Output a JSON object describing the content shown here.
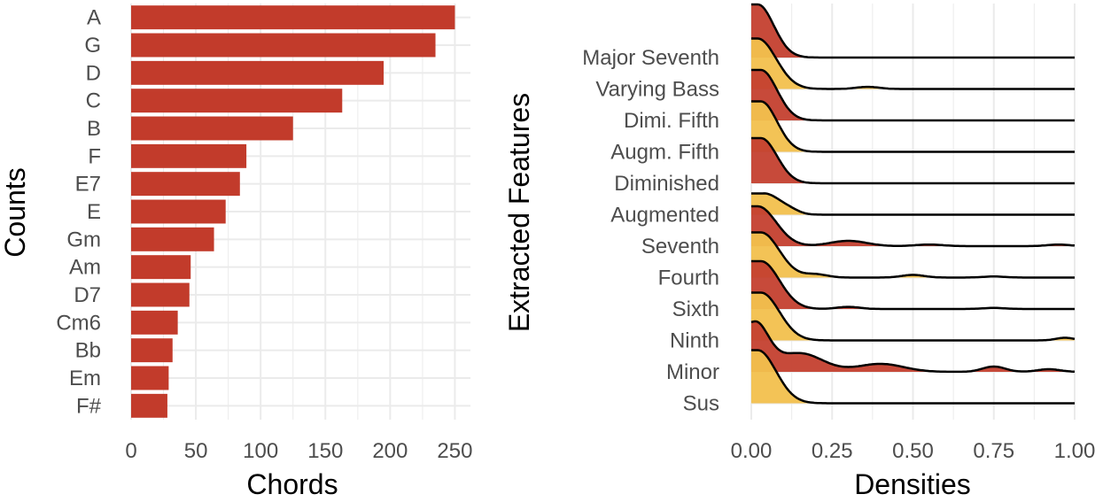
{
  "chart_data": [
    {
      "type": "bar",
      "orientation": "horizontal",
      "xlabel": "Chords",
      "ylabel": "Counts",
      "categories": [
        "A",
        "G",
        "D",
        "C",
        "B",
        "F",
        "E7",
        "E",
        "Gm",
        "Am",
        "D7",
        "Cm6",
        "Bb",
        "Em",
        "F#"
      ],
      "values": [
        250,
        235,
        195,
        163,
        125,
        89,
        84,
        73,
        64,
        46,
        45,
        36,
        32,
        29,
        28
      ],
      "xlim": [
        0,
        262
      ],
      "xticks": [
        0,
        50,
        100,
        150,
        200,
        250
      ],
      "grid": true,
      "colors": {
        "bar": "#c23b2b",
        "grid": "#ebebeb",
        "text": "#4d4d4d"
      }
    },
    {
      "type": "area",
      "subtype": "ridgeline-density",
      "xlabel": "Densities",
      "ylabel": "Extracted Features",
      "x_range": [
        0,
        1
      ],
      "xticks": [
        "0.00",
        "0.25",
        "0.50",
        "0.75",
        "1.00"
      ],
      "grid": true,
      "colors": {
        "red": "#c4402f",
        "yellow": "#f2c04d",
        "line": "#000000",
        "grid": "#ebebeb",
        "text": "#4d4d4d"
      },
      "series": [
        {
          "name": "Major Seventh",
          "fill": "red",
          "peak_x": 0.02,
          "spread": 0.07,
          "peak_height": 1.0,
          "tail": []
        },
        {
          "name": "Varying Bass",
          "fill": "yellow",
          "peak_x": 0.02,
          "spread": 0.08,
          "peak_height": 0.95,
          "tail": [
            [
              0.36,
              0.05,
              0.04
            ]
          ]
        },
        {
          "name": "Dimi. Fifth",
          "fill": "red",
          "peak_x": 0.03,
          "spread": 0.07,
          "peak_height": 0.95,
          "tail": []
        },
        {
          "name": "Augm. Fifth",
          "fill": "yellow",
          "peak_x": 0.03,
          "spread": 0.07,
          "peak_height": 0.95,
          "tail": []
        },
        {
          "name": "Diminished",
          "fill": "red",
          "peak_x": 0.03,
          "spread": 0.07,
          "peak_height": 0.85,
          "tail": []
        },
        {
          "name": "Augmented",
          "fill": "yellow",
          "peak_x": 0.04,
          "spread": 0.07,
          "peak_height": 0.4,
          "tail": [
            [
              0.12,
              0.04,
              0.05
            ]
          ]
        },
        {
          "name": "Seventh",
          "fill": "red",
          "peak_x": 0.02,
          "spread": 0.08,
          "peak_height": 0.75,
          "tail": [
            [
              0.3,
              0.08,
              0.1
            ],
            [
              0.55,
              0.06,
              0.03
            ],
            [
              0.95,
              0.05,
              0.03
            ]
          ]
        },
        {
          "name": "Fourth",
          "fill": "yellow",
          "peak_x": 0.03,
          "spread": 0.08,
          "peak_height": 0.85,
          "tail": [
            [
              0.2,
              0.05,
              0.06
            ],
            [
              0.5,
              0.05,
              0.05
            ],
            [
              0.75,
              0.05,
              0.02
            ]
          ]
        },
        {
          "name": "Sixth",
          "fill": "red",
          "peak_x": 0.03,
          "spread": 0.08,
          "peak_height": 0.9,
          "tail": [
            [
              0.3,
              0.05,
              0.04
            ],
            [
              0.75,
              0.05,
              0.02
            ]
          ]
        },
        {
          "name": "Ninth",
          "fill": "yellow",
          "peak_x": 0.03,
          "spread": 0.08,
          "peak_height": 0.9,
          "tail": [
            [
              0.97,
              0.04,
              0.05
            ]
          ]
        },
        {
          "name": "Minor",
          "fill": "red",
          "peak_x": 0.01,
          "spread": 0.06,
          "peak_height": 0.9,
          "tail": [
            [
              0.15,
              0.1,
              0.35
            ],
            [
              0.4,
              0.1,
              0.15
            ],
            [
              0.75,
              0.05,
              0.1
            ],
            [
              0.92,
              0.05,
              0.05
            ]
          ]
        },
        {
          "name": "Sus",
          "fill": "yellow",
          "peak_x": 0.02,
          "spread": 0.08,
          "peak_height": 1.0,
          "tail": []
        }
      ]
    }
  ]
}
